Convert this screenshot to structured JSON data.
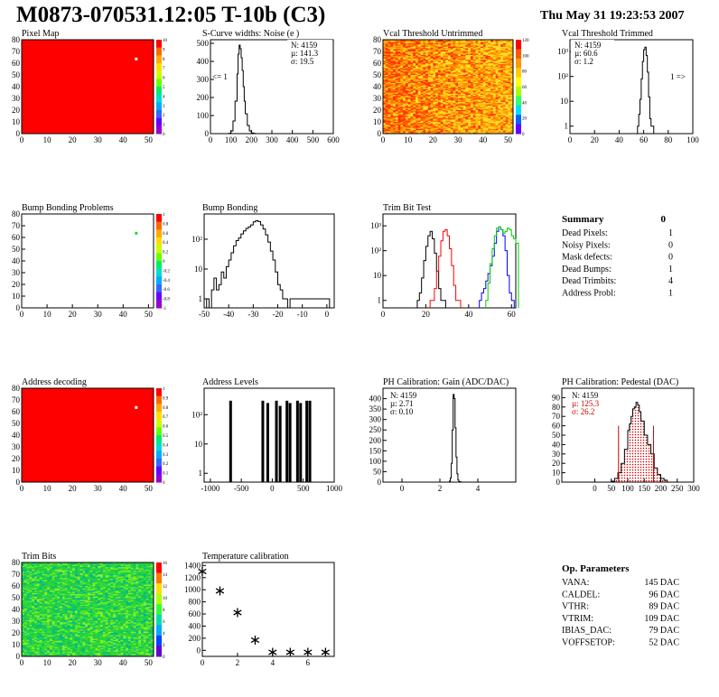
{
  "header": {
    "title": "M0873-070531.12:05 T-10b (C3)",
    "date": "Thu May 31 19:23:53 2007"
  },
  "colors": {
    "map_red": "#ff0000",
    "trim_green": "#33dd33",
    "hist_black": "#000000",
    "trim_red": "#ff0000",
    "trim_blue": "#0000ff",
    "trim_green_line": "#00cc00",
    "pedestal_red": "#cc0000"
  },
  "palette_ticks": {
    "pixel_map": [
      "10",
      "9",
      "8",
      "7",
      "6",
      "5",
      "4",
      "3",
      "2",
      "1",
      "0"
    ],
    "vcal_untrimmed": [
      "120",
      "100",
      "80",
      "60",
      "40",
      "20",
      "0"
    ],
    "bump_problems": [
      "1",
      "0.8",
      "0.6",
      "0.4",
      "0.2",
      "0",
      "-0.2",
      "-0.4",
      "-0.6",
      "-0.8",
      "-1"
    ],
    "address_decoding": [
      "1",
      "0.9",
      "0.8",
      "0.7",
      "0.6",
      "0.5",
      "0.4",
      "0.3",
      "0.2",
      "0.1",
      "0"
    ],
    "trim_bits": [
      "16",
      "14",
      "12",
      "10",
      "8",
      "6",
      "4",
      "2",
      "0"
    ]
  },
  "chart_data": [
    {
      "id": "pixel-map",
      "type": "heatmap",
      "title": "Pixel Map",
      "xlim": [
        0,
        52
      ],
      "ylim": [
        0,
        80
      ],
      "xticks": [
        "0",
        "10",
        "20",
        "30",
        "40",
        "50"
      ],
      "yticks": [
        "0",
        "10",
        "20",
        "30",
        "40",
        "50",
        "60",
        "70",
        "80"
      ],
      "fill": "uniform 10",
      "outliers": [
        {
          "x": 45,
          "y": 64
        }
      ]
    },
    {
      "id": "scurve",
      "type": "histogram",
      "title": "S-Curve widths: Noise (e )",
      "xlim": [
        0,
        600
      ],
      "ylim": [
        0,
        520
      ],
      "xticks": [
        "0",
        "100",
        "200",
        "300",
        "400",
        "500",
        "600"
      ],
      "yticks": [
        "0",
        "100",
        "200",
        "300",
        "400",
        "500"
      ],
      "stats": {
        "n": "N: 4159",
        "mu": "µ: 141.3",
        "sigma": "σ: 19.5"
      },
      "annotation": "<= 1",
      "x": [
        80,
        90,
        100,
        110,
        120,
        130,
        135,
        140,
        145,
        150,
        155,
        160,
        165,
        170,
        180,
        190,
        200,
        210,
        220
      ],
      "values": [
        0,
        2,
        15,
        70,
        180,
        330,
        440,
        490,
        470,
        420,
        350,
        260,
        180,
        110,
        45,
        15,
        4,
        1,
        0
      ]
    },
    {
      "id": "vcal-untrimmed",
      "type": "heatmap",
      "title": "Vcal Threshold Untrimmed",
      "xlim": [
        0,
        52
      ],
      "ylim": [
        0,
        80
      ],
      "xticks": [
        "0",
        "10",
        "20",
        "30",
        "40",
        "50"
      ],
      "yticks": [
        "0",
        "10",
        "20",
        "30",
        "40",
        "50",
        "60",
        "70",
        "80"
      ],
      "range": [
        0,
        120
      ]
    },
    {
      "id": "vcal-trimmed",
      "type": "histogram",
      "title": "Vcal Threshold Trimmed",
      "xlim": [
        0,
        100
      ],
      "log": true,
      "ylim": [
        0.5,
        3000
      ],
      "xticks": [
        "0",
        "20",
        "40",
        "60",
        "80",
        "100"
      ],
      "yticks": [
        "1",
        "10",
        "10²",
        "10³"
      ],
      "stats": {
        "n": "N: 4159",
        "mu": "µ: 60.6",
        "sigma": "σ:  1.2"
      },
      "annotation": "1 =>",
      "x": [
        55,
        56,
        57,
        58,
        59,
        60,
        61,
        62,
        63,
        64,
        65,
        66
      ],
      "values": [
        1,
        3,
        12,
        80,
        400,
        1200,
        1500,
        700,
        150,
        15,
        2,
        1
      ]
    },
    {
      "id": "bump-problems",
      "type": "heatmap",
      "title": "Bump Bonding Problems",
      "xlim": [
        0,
        52
      ],
      "ylim": [
        0,
        80
      ],
      "xticks": [
        "0",
        "10",
        "20",
        "30",
        "40",
        "50"
      ],
      "yticks": [
        "0",
        "10",
        "20",
        "30",
        "40",
        "50",
        "60",
        "70",
        "80"
      ],
      "outliers": [
        {
          "x": 45,
          "y": 64
        }
      ]
    },
    {
      "id": "bump-bonding",
      "type": "histogram",
      "title": "Bump Bonding",
      "xlim": [
        -50,
        3
      ],
      "log": true,
      "ylim": [
        0.5,
        700
      ],
      "xticks": [
        "-50",
        "-40",
        "-30",
        "-20",
        "-10",
        "0"
      ],
      "yticks": [
        "1",
        "10",
        "10²"
      ],
      "x": [
        -49,
        -48,
        -47,
        -46,
        -45,
        -44,
        -43,
        -42,
        -41,
        -40,
        -39,
        -38,
        -37,
        -36,
        -35,
        -34,
        -33,
        -32,
        -31,
        -30,
        -29,
        -28,
        -27,
        -26,
        -25,
        -24,
        -23,
        -22,
        -21,
        -20,
        -19,
        -18,
        -17,
        -16,
        -15,
        0
      ],
      "values": [
        1,
        0,
        2,
        5,
        2,
        3,
        8,
        5,
        12,
        20,
        35,
        60,
        90,
        110,
        150,
        190,
        230,
        260,
        300,
        380,
        420,
        390,
        300,
        220,
        140,
        80,
        40,
        20,
        8,
        3,
        2,
        1,
        1,
        0,
        1,
        1
      ]
    },
    {
      "id": "trim-bit-test",
      "type": "line",
      "title": "Trim Bit Test",
      "xlim": [
        0,
        62
      ],
      "log": true,
      "ylim": [
        0.5,
        3000
      ],
      "xticks": [
        "0",
        "20",
        "40",
        "60"
      ],
      "yticks": [
        "1",
        "10",
        "10²",
        "10³"
      ],
      "series": [
        {
          "color": "#000000",
          "x": [
            16,
            17,
            18,
            19,
            20,
            21,
            22,
            23,
            24,
            25,
            26,
            27,
            28
          ],
          "values": [
            1,
            2,
            8,
            40,
            150,
            400,
            600,
            300,
            80,
            15,
            3,
            1,
            1
          ]
        },
        {
          "color": "#ff0000",
          "x": [
            22,
            23,
            24,
            25,
            26,
            27,
            28,
            29,
            30,
            31,
            32,
            33,
            34,
            35
          ],
          "values": [
            1,
            1,
            3,
            15,
            60,
            250,
            600,
            700,
            400,
            120,
            25,
            4,
            1,
            1
          ]
        },
        {
          "color": "#0000ff",
          "x": [
            45,
            46,
            47,
            48,
            49,
            50,
            51,
            52,
            53,
            54,
            55,
            56,
            57,
            58,
            59,
            60
          ],
          "values": [
            1,
            2,
            3,
            6,
            12,
            25,
            60,
            200,
            600,
            900,
            700,
            400,
            100,
            10,
            2,
            1
          ]
        },
        {
          "color": "#00cc00",
          "x": [
            48,
            49,
            50,
            51,
            52,
            53,
            54,
            55,
            56,
            57,
            58,
            59,
            60,
            61,
            62
          ],
          "values": [
            1,
            5,
            30,
            120,
            400,
            800,
            900,
            700,
            500,
            600,
            800,
            700,
            400,
            300,
            200
          ]
        }
      ]
    },
    {
      "id": "address-decoding",
      "type": "heatmap",
      "title": "Address decoding",
      "xlim": [
        0,
        52
      ],
      "ylim": [
        0,
        80
      ],
      "xticks": [
        "0",
        "10",
        "20",
        "30",
        "40",
        "50"
      ],
      "yticks": [
        "0",
        "10",
        "20",
        "30",
        "40",
        "50",
        "60",
        "70",
        "80"
      ],
      "outliers": [
        {
          "x": 45,
          "y": 64
        }
      ]
    },
    {
      "id": "address-levels",
      "type": "histogram",
      "title": "Address Levels",
      "xlim": [
        -1100,
        1000
      ],
      "log": true,
      "ylim": [
        0.5,
        800
      ],
      "xticks": [
        "-1000",
        "-500",
        "0",
        "500",
        "1000"
      ],
      "yticks": [
        "1",
        "10",
        "10²"
      ],
      "spikes": [
        {
          "x": -680,
          "v": 300
        },
        {
          "x": -160,
          "v": 300
        },
        {
          "x": -80,
          "v": 250
        },
        {
          "x": 60,
          "v": 300
        },
        {
          "x": 120,
          "v": 200
        },
        {
          "x": 230,
          "v": 300
        },
        {
          "x": 280,
          "v": 250
        },
        {
          "x": 400,
          "v": 300
        },
        {
          "x": 450,
          "v": 250
        },
        {
          "x": 550,
          "v": 300
        },
        {
          "x": 600,
          "v": 300
        }
      ]
    },
    {
      "id": "ph-gain",
      "type": "histogram",
      "title": "PH Calibration: Gain (ADC/DAC)",
      "xlim": [
        -1,
        6
      ],
      "ylim": [
        0,
        450
      ],
      "xticks": [
        "0",
        "2",
        "4"
      ],
      "yticks": [
        "0",
        "50",
        "100",
        "150",
        "200",
        "250",
        "300",
        "350",
        "400"
      ],
      "stats": {
        "n": "N: 4159",
        "mu": "µ: 2.71",
        "sigma": "σ: 0.10"
      },
      "x": [
        2.4,
        2.5,
        2.55,
        2.6,
        2.65,
        2.7,
        2.75,
        2.8,
        2.85,
        2.9,
        2.95,
        3.0,
        3.1
      ],
      "values": [
        0,
        5,
        20,
        90,
        250,
        420,
        400,
        260,
        120,
        40,
        10,
        2,
        0
      ]
    },
    {
      "id": "ph-pedestal",
      "type": "histogram",
      "title": "PH Calibration: Pedestal (DAC)",
      "xlim": [
        -100,
        300
      ],
      "ylim": [
        0,
        100
      ],
      "xticks": [
        "0",
        "50",
        "100",
        "150",
        "200",
        "250",
        "300"
      ],
      "yticks": [
        "0",
        "10",
        "20",
        "30",
        "40",
        "50",
        "60",
        "70",
        "80",
        "90"
      ],
      "stats": {
        "n": "N: 4159",
        "mu": "µ: 125.3",
        "sigma": "σ: 26.2"
      },
      "fit_lines": [
        72,
        178
      ],
      "x": [
        50,
        60,
        70,
        80,
        90,
        100,
        105,
        110,
        115,
        120,
        125,
        130,
        135,
        140,
        150,
        160,
        170,
        180,
        190,
        200,
        210,
        220
      ],
      "values": [
        1,
        4,
        10,
        20,
        35,
        55,
        62,
        70,
        78,
        80,
        85,
        82,
        75,
        65,
        50,
        40,
        30,
        15,
        8,
        4,
        2,
        0
      ]
    },
    {
      "id": "trim-bits",
      "type": "heatmap",
      "title": "Trim Bits",
      "xlim": [
        0,
        52
      ],
      "ylim": [
        0,
        80
      ],
      "xticks": [
        "0",
        "10",
        "20",
        "30",
        "40",
        "50"
      ],
      "yticks": [
        "0",
        "10",
        "20",
        "30",
        "40",
        "50",
        "60",
        "70",
        "80"
      ],
      "range": [
        0,
        16
      ]
    },
    {
      "id": "temperature",
      "type": "scatter",
      "title": "Temperature calibration",
      "xlim": [
        0,
        7.5
      ],
      "ylim": [
        -100,
        1450
      ],
      "xticks": [
        "0",
        "2",
        "4",
        "6"
      ],
      "yticks": [
        "0",
        "200",
        "400",
        "600",
        "800",
        "1000",
        "1200",
        "1400"
      ],
      "x": [
        0,
        1,
        2,
        3,
        4,
        5,
        6,
        7
      ],
      "values": [
        1300,
        980,
        620,
        170,
        -30,
        -30,
        -30,
        -30
      ]
    }
  ],
  "summary": {
    "title": "Summary",
    "total": "0",
    "rows": [
      {
        "label": "Dead Pixels:",
        "value": "1"
      },
      {
        "label": "Noisy Pixels:",
        "value": "0"
      },
      {
        "label": "Mask defects:",
        "value": "0"
      },
      {
        "label": "Dead Bumps:",
        "value": "1"
      },
      {
        "label": "Dead Trimbits:",
        "value": "4"
      },
      {
        "label": "Address Probl:",
        "value": "1"
      }
    ]
  },
  "op_params": {
    "title": "Op. Parameters",
    "rows": [
      {
        "label": "VANA:",
        "value": "145 DAC"
      },
      {
        "label": "CALDEL:",
        "value": "96 DAC"
      },
      {
        "label": "VTHR:",
        "value": "89 DAC"
      },
      {
        "label": "VTRIM:",
        "value": "109 DAC"
      },
      {
        "label": "IBIAS_DAC:",
        "value": "79 DAC"
      },
      {
        "label": "VOFFSETOP:",
        "value": "52 DAC"
      }
    ]
  }
}
